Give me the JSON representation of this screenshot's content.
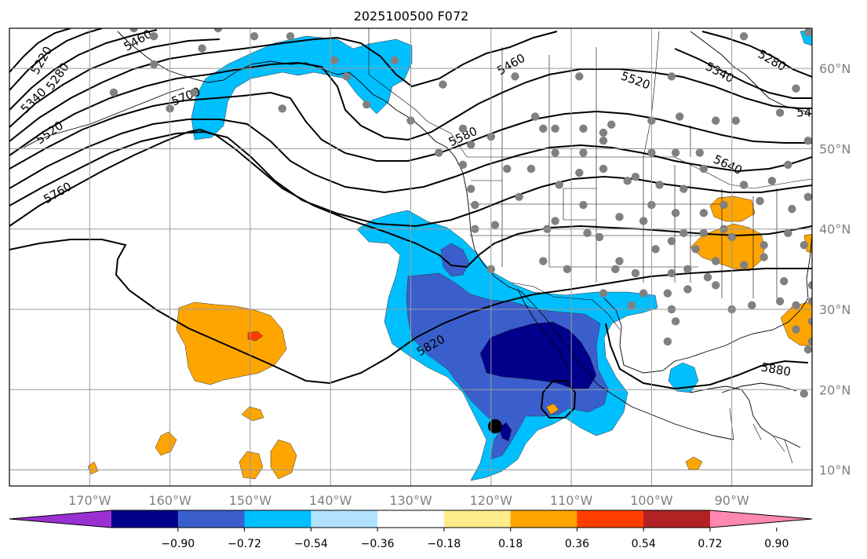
{
  "title": "2025100500 F072",
  "map": {
    "lon_range": [
      -180,
      -80
    ],
    "lat_range": [
      8,
      65
    ],
    "lon_ticks": [
      {
        "lon": -170,
        "label": "170°W"
      },
      {
        "lon": -160,
        "label": "160°W"
      },
      {
        "lon": -150,
        "label": "150°W"
      },
      {
        "lon": -140,
        "label": "140°W"
      },
      {
        "lon": -130,
        "label": "130°W"
      },
      {
        "lon": -120,
        "label": "120°W"
      },
      {
        "lon": -110,
        "label": "110°W"
      },
      {
        "lon": -100,
        "label": "100°W"
      },
      {
        "lon": -90,
        "label": "90°W"
      }
    ],
    "lat_ticks": [
      {
        "lat": 60,
        "label": "60°N"
      },
      {
        "lat": 50,
        "label": "50°N"
      },
      {
        "lat": 40,
        "label": "40°N"
      },
      {
        "lat": 30,
        "label": "30°N"
      },
      {
        "lat": 20,
        "label": "20°N"
      },
      {
        "lat": 10,
        "label": "10°N"
      }
    ],
    "grid": true
  },
  "colorbar": {
    "colors": [
      "#9b30d0",
      "#00008b",
      "#3a5fcd",
      "#00bfff",
      "#b0e2ff",
      "#ffffff",
      "#ffec8b",
      "#ffa500",
      "#ff3e00",
      "#b22222",
      "#ff88b0"
    ],
    "tick_labels": [
      "−0.90",
      "−0.72",
      "−0.54",
      "−0.36",
      "−0.18",
      "0.18",
      "0.36",
      "0.54",
      "0.72",
      "0.90"
    ]
  },
  "contour_labels": [
    {
      "text": "5220",
      "lon": -176,
      "lat": 61,
      "angle": -60
    },
    {
      "text": "5280",
      "lon": -174,
      "lat": 59,
      "angle": -55
    },
    {
      "text": "5340",
      "lon": -177,
      "lat": 56,
      "angle": -45
    },
    {
      "text": "5460",
      "lon": -164,
      "lat": 63.5,
      "angle": -30
    },
    {
      "text": "5520",
      "lon": -175,
      "lat": 52,
      "angle": -35
    },
    {
      "text": "5700",
      "lon": -158,
      "lat": 56.5,
      "angle": -22
    },
    {
      "text": "5760",
      "lon": -174,
      "lat": 44.5,
      "angle": -30
    },
    {
      "text": "5460",
      "lon": -117.5,
      "lat": 60.5,
      "angle": -30
    },
    {
      "text": "5520",
      "lon": -102,
      "lat": 58.5,
      "angle": 20
    },
    {
      "text": "5580",
      "lon": -123.5,
      "lat": 51.5,
      "angle": -25
    },
    {
      "text": "5280",
      "lon": -85,
      "lat": 61,
      "angle": 30
    },
    {
      "text": "5340",
      "lon": -91.5,
      "lat": 59.5,
      "angle": 28
    },
    {
      "text": "5640",
      "lon": -90.5,
      "lat": 48,
      "angle": 25
    },
    {
      "text": "54",
      "lon": -81,
      "lat": 54.5,
      "angle": 0
    },
    {
      "text": "5820",
      "lon": -127.5,
      "lat": 25.5,
      "angle": -30
    },
    {
      "text": "5880",
      "lon": -84.5,
      "lat": 22.5,
      "angle": 10
    }
  ],
  "stations": [
    [
      -164.5,
      65
    ],
    [
      -162,
      64
    ],
    [
      -156,
      62.5
    ],
    [
      -154,
      65
    ],
    [
      -149.5,
      64
    ],
    [
      -145,
      64
    ],
    [
      -139.5,
      61
    ],
    [
      -138,
      59
    ],
    [
      -132,
      61
    ],
    [
      -126,
      58
    ],
    [
      -117,
      59
    ],
    [
      -109,
      59
    ],
    [
      -97.5,
      59
    ],
    [
      -88.5,
      64
    ],
    [
      -80.5,
      64.5
    ],
    [
      -82,
      57.5
    ],
    [
      -162,
      60.5
    ],
    [
      -167,
      57
    ],
    [
      -160,
      55
    ],
    [
      -157,
      57
    ],
    [
      -146,
      55
    ],
    [
      -135.5,
      55.5
    ],
    [
      -130,
      53.5
    ],
    [
      -123.5,
      52.5
    ],
    [
      -120,
      51.5
    ],
    [
      -122.5,
      50.5
    ],
    [
      -126.5,
      49.5
    ],
    [
      -123.5,
      48
    ],
    [
      -122.5,
      45
    ],
    [
      -122,
      43
    ],
    [
      -122,
      40
    ],
    [
      -119.5,
      40.5
    ],
    [
      -120,
      35
    ],
    [
      -114.5,
      54
    ],
    [
      -113.5,
      52.5
    ],
    [
      -112,
      52.5
    ],
    [
      -108.5,
      52.5
    ],
    [
      -106,
      52
    ],
    [
      -105,
      53
    ],
    [
      -100,
      53.5
    ],
    [
      -96.5,
      54
    ],
    [
      -92,
      53.5
    ],
    [
      -89.5,
      53.5
    ],
    [
      -84,
      54.5
    ],
    [
      -112,
      49.5
    ],
    [
      -108.5,
      49.5
    ],
    [
      -106,
      51
    ],
    [
      -100,
      49.5
    ],
    [
      -97,
      49.5
    ],
    [
      -94,
      49.5
    ],
    [
      -80.5,
      51
    ],
    [
      -109,
      47
    ],
    [
      -106,
      47.5
    ],
    [
      -111.5,
      45.5
    ],
    [
      -116.5,
      44
    ],
    [
      -118,
      47.5
    ],
    [
      -115,
      47.5
    ],
    [
      -102,
      46.5
    ],
    [
      -99,
      45.5
    ],
    [
      -93.5,
      47.5
    ],
    [
      -88.5,
      45.5
    ],
    [
      -85,
      46
    ],
    [
      -83,
      48
    ],
    [
      -113,
      40
    ],
    [
      -112,
      41
    ],
    [
      -108.5,
      43
    ],
    [
      -104,
      41.5
    ],
    [
      -101,
      41
    ],
    [
      -97,
      42
    ],
    [
      -96,
      39.5
    ],
    [
      -93.5,
      42
    ],
    [
      -91,
      43
    ],
    [
      -86.5,
      43.5
    ],
    [
      -82.5,
      42.5
    ],
    [
      -80.5,
      44
    ],
    [
      -79,
      40.5
    ],
    [
      -106.5,
      39
    ],
    [
      -108,
      39.5
    ],
    [
      -104.5,
      35
    ],
    [
      -110.5,
      35
    ],
    [
      -113.5,
      36
    ],
    [
      -99.5,
      37.5
    ],
    [
      -97.5,
      38.5
    ],
    [
      -94.5,
      37.5
    ],
    [
      -93.5,
      39.5
    ],
    [
      -90,
      39
    ],
    [
      -86,
      38
    ],
    [
      -83,
      39.5
    ],
    [
      -81,
      38
    ],
    [
      -79,
      37.5
    ],
    [
      -106,
      32
    ],
    [
      -102,
      34.5
    ],
    [
      -97.5,
      34.5
    ],
    [
      -95.5,
      35
    ],
    [
      -92,
      36
    ],
    [
      -88.5,
      35.5
    ],
    [
      -86,
      36.5
    ],
    [
      -83.5,
      33.5
    ],
    [
      -80,
      33
    ],
    [
      -102.5,
      30.5
    ],
    [
      -97.5,
      30
    ],
    [
      -95.5,
      32.5
    ],
    [
      -90,
      30
    ],
    [
      -87.5,
      30.5
    ],
    [
      -84,
      31
    ],
    [
      -82,
      30.5
    ],
    [
      -80,
      31
    ],
    [
      -93,
      34
    ],
    [
      -98,
      26
    ],
    [
      -97,
      28.5
    ],
    [
      -82,
      27.5
    ],
    [
      -80,
      28.5
    ],
    [
      -80,
      26
    ],
    [
      -80.5,
      25
    ],
    [
      -81,
      19.5
    ],
    [
      -101,
      32
    ],
    [
      -92,
      33
    ],
    [
      -98,
      32
    ],
    [
      -104,
      36
    ],
    [
      -100,
      43
    ],
    [
      -96,
      45
    ],
    [
      -91,
      40
    ],
    [
      -103,
      46
    ]
  ]
}
